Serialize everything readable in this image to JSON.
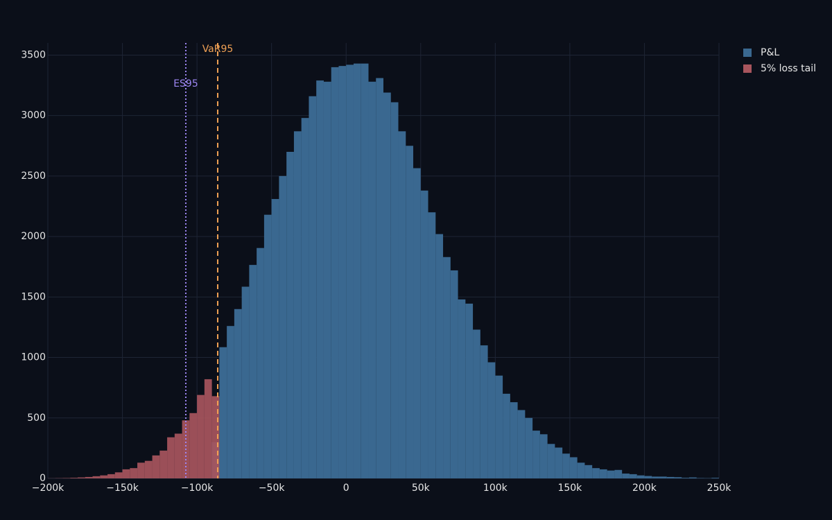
{
  "chart_data": {
    "type": "histogram",
    "xlim": [
      -200000,
      250000
    ],
    "ylim": [
      0,
      3600
    ],
    "xticks": [
      {
        "value": -200000,
        "label": "−200k"
      },
      {
        "value": -150000,
        "label": "−150k"
      },
      {
        "value": -100000,
        "label": "−100k"
      },
      {
        "value": -50000,
        "label": "−50k"
      },
      0,
      {
        "value": 50000,
        "label": "50k"
      },
      {
        "value": 100000,
        "label": "100k"
      },
      {
        "value": 150000,
        "label": "150k"
      },
      {
        "value": 200000,
        "label": "200k"
      },
      {
        "value": 250000,
        "label": "250k"
      }
    ],
    "yticks": [
      0,
      500,
      1000,
      1500,
      2000,
      2500,
      3000,
      3500
    ],
    "grid": true,
    "legend": "top-right",
    "series": [
      {
        "name": "P&L",
        "color": "#3a6890",
        "bins": [
          -90000,
          -85000,
          -80000,
          -75000,
          -70000,
          -65000,
          -60000,
          -55000,
          -50000,
          -45000,
          -40000,
          -35000,
          -30000,
          -25000,
          -20000,
          -15000,
          -10000,
          -5000,
          0,
          5000,
          10000,
          15000,
          20000,
          25000,
          30000,
          35000,
          40000,
          45000,
          50000,
          55000,
          60000,
          65000,
          70000,
          75000,
          80000,
          85000,
          90000,
          95000,
          100000,
          105000,
          110000,
          115000,
          120000,
          125000,
          130000,
          135000,
          140000,
          145000,
          150000,
          155000,
          160000,
          165000,
          170000,
          175000,
          180000,
          185000,
          190000,
          195000,
          200000,
          205000,
          210000,
          215000,
          220000,
          225000,
          230000,
          235000,
          240000,
          245000,
          250000
        ],
        "values": [
          300,
          1085,
          1260,
          1400,
          1585,
          1765,
          1905,
          2180,
          2310,
          2500,
          2700,
          2870,
          2980,
          3160,
          3290,
          3280,
          3400,
          3410,
          3420,
          3430,
          3430,
          3280,
          3310,
          3190,
          3110,
          2870,
          2750,
          2565,
          2380,
          2200,
          2020,
          1830,
          1720,
          1480,
          1445,
          1230,
          1100,
          960,
          850,
          700,
          630,
          565,
          500,
          395,
          365,
          285,
          255,
          205,
          175,
          130,
          110,
          85,
          75,
          65,
          70,
          40,
          35,
          25,
          20,
          15,
          15,
          12,
          10,
          5,
          8,
          3,
          2,
          5
        ]
      },
      {
        "name": "5% loss tail",
        "color": "#a8555d",
        "bins": [
          -200000,
          -195000,
          -190000,
          -185000,
          -180000,
          -175000,
          -170000,
          -165000,
          -160000,
          -155000,
          -150000,
          -145000,
          -140000,
          -135000,
          -130000,
          -125000,
          -120000,
          -115000,
          -110000,
          -105000,
          -100000,
          -95000,
          -90000,
          -85000
        ],
        "values": [
          1,
          2,
          3,
          5,
          8,
          12,
          18,
          25,
          35,
          50,
          75,
          85,
          130,
          145,
          190,
          230,
          340,
          370,
          480,
          540,
          690,
          820,
          680
        ]
      }
    ],
    "vlines": [
      {
        "name": "ES95",
        "x": -107500,
        "color": "#9d86f2",
        "dash": "dotted"
      },
      {
        "name": "VaR95",
        "x": -86100,
        "color": "#f0a155",
        "dash": "dashed"
      }
    ]
  }
}
